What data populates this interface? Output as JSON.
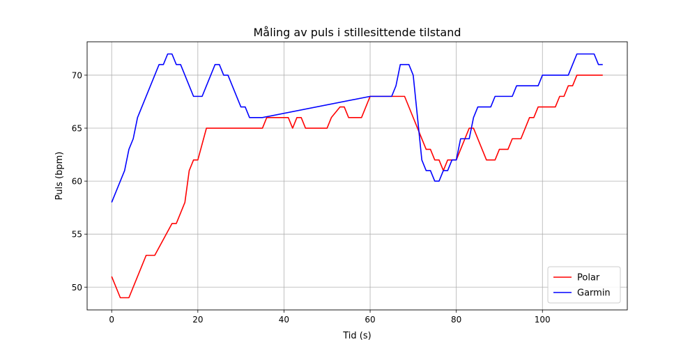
{
  "chart_data": {
    "type": "line",
    "title": "Måling av puls i stillesittende tilstand",
    "xlabel": "Tid (s)",
    "ylabel": "Puls (bpm)",
    "xlim": [
      -5.7,
      119.7
    ],
    "ylim": [
      47.85,
      73.15
    ],
    "xticks": [
      0,
      20,
      40,
      60,
      80,
      100
    ],
    "yticks": [
      50,
      55,
      60,
      65,
      70
    ],
    "grid": true,
    "legend_position": "lower-right",
    "series": [
      {
        "name": "Polar",
        "color": "#ff0000",
        "x": [
          0,
          2,
          4,
          8,
          10,
          14,
          15,
          17,
          18,
          19,
          20,
          22,
          35,
          36,
          41,
          42,
          43,
          44,
          45,
          50,
          51,
          53,
          54,
          55,
          58,
          59,
          60,
          67,
          68,
          73,
          74,
          75,
          76,
          77,
          78,
          79,
          80,
          83,
          84,
          87,
          88,
          89,
          90,
          92,
          93,
          95,
          96,
          97,
          98,
          99,
          103,
          104,
          105,
          106,
          107,
          108,
          114
        ],
        "y": [
          51,
          49,
          49,
          53,
          53,
          56,
          56,
          58,
          61,
          62,
          62,
          65,
          65,
          66,
          66,
          65,
          66,
          66,
          65,
          65,
          66,
          67,
          67,
          66,
          66,
          67,
          68,
          68,
          68,
          63,
          63,
          62,
          62,
          61,
          62,
          62,
          62,
          65,
          65,
          62,
          62,
          62,
          63,
          63,
          64,
          64,
          65,
          66,
          66,
          67,
          67,
          68,
          68,
          69,
          69,
          70,
          70
        ]
      },
      {
        "name": "Garmin",
        "color": "#0000ff",
        "x": [
          0,
          3,
          4,
          5,
          6,
          11,
          12,
          13,
          14,
          15,
          16,
          19,
          21,
          24,
          25,
          26,
          27,
          30,
          31,
          32,
          33,
          34,
          35,
          60,
          64,
          65,
          66,
          67,
          68,
          69,
          70,
          72,
          73,
          74,
          75,
          76,
          77,
          78,
          79,
          80,
          81,
          82,
          83,
          84,
          85,
          87,
          88,
          89,
          92,
          93,
          94,
          98,
          99,
          100,
          102,
          106,
          107,
          108,
          111,
          112,
          113,
          114
        ],
        "y": [
          58,
          61,
          63,
          64,
          66,
          71,
          71,
          72,
          72,
          71,
          71,
          68,
          68,
          71,
          71,
          70,
          70,
          67,
          67,
          66,
          66,
          66,
          66,
          68,
          68,
          68,
          69,
          71,
          71,
          71,
          70,
          62,
          61,
          61,
          60,
          60,
          61,
          61,
          62,
          62,
          64,
          64,
          64,
          66,
          67,
          67,
          67,
          68,
          68,
          68,
          69,
          69,
          69,
          70,
          70,
          70,
          71,
          72,
          72,
          72,
          71,
          71
        ]
      }
    ]
  }
}
